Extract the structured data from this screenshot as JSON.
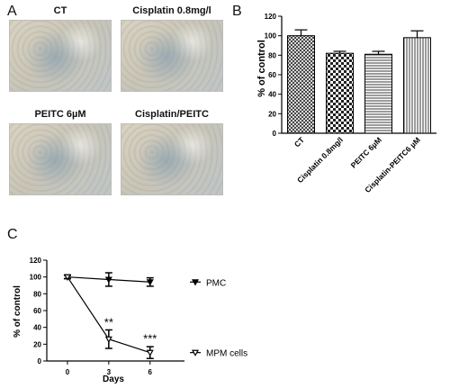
{
  "panel_a": {
    "letter": "A",
    "images": [
      {
        "label": "CT"
      },
      {
        "label": "Cisplatin 0.8mg/l"
      },
      {
        "label": "PEITC 6µM"
      },
      {
        "label": "Cisplatin/PEITC"
      }
    ]
  },
  "panel_b_letter": "B",
  "panel_c_letter": "C",
  "chart_data": [
    {
      "type": "bar",
      "ylabel": "% of control",
      "xlabel": "",
      "ylim": [
        0,
        120
      ],
      "yticks": [
        "0",
        "20",
        "40",
        "60",
        "80",
        "100",
        "120"
      ],
      "categories": [
        "CT",
        "Cisplatin 0.8mg/l",
        "PEITC 6µM",
        "Cisplatin-PEITC6 µM"
      ],
      "values": [
        100,
        82,
        81,
        98
      ],
      "errors": [
        6,
        2,
        3,
        7
      ],
      "patterns": [
        "crosshatch",
        "checker",
        "horizontal",
        "vertical"
      ]
    },
    {
      "type": "line",
      "xlabel": "Days",
      "ylabel": "% of control",
      "ylim": [
        0,
        120
      ],
      "yticks": [
        "0",
        "20",
        "40",
        "60",
        "80",
        "100",
        "120"
      ],
      "x": [
        0,
        3,
        6
      ],
      "xticks": [
        "0",
        "3",
        "6"
      ],
      "series": [
        {
          "name": "PMC",
          "values": [
            100,
            97,
            94
          ],
          "errors": [
            2,
            8,
            5
          ],
          "marker": "triangle-down-filled"
        },
        {
          "name": "MPM cells",
          "values": [
            100,
            26,
            10
          ],
          "errors": [
            2,
            11,
            7
          ],
          "marker": "triangle-down-open"
        }
      ],
      "annotations": [
        {
          "text": "**",
          "x": 3,
          "y": 41
        },
        {
          "text": "***",
          "x": 6,
          "y": 22
        }
      ]
    }
  ]
}
